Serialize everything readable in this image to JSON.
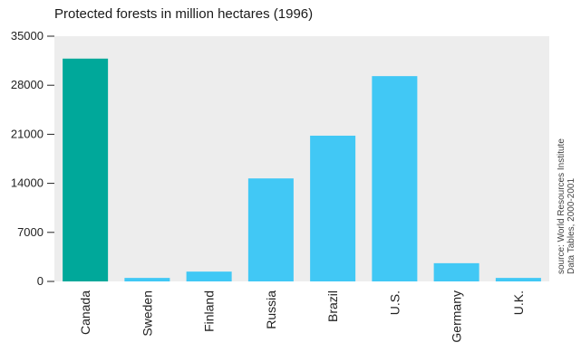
{
  "chart_data": {
    "type": "bar",
    "title": "Protected forests in million hectares (1996)",
    "xlabel": "",
    "ylabel": "",
    "categories": [
      "Canada",
      "Sweden",
      "Finland",
      "Russia",
      "Brazil",
      "U.S.",
      "Germany",
      "U.K."
    ],
    "values": [
      31800,
      500,
      1400,
      14700,
      20800,
      29300,
      2600,
      500
    ],
    "ylim": [
      0,
      35000
    ],
    "yticks": [
      "0",
      "7000",
      "14000",
      "21000",
      "28000",
      "35000"
    ],
    "highlight_category": "Canada",
    "colors": {
      "highlight": "#00a89a",
      "bar": "#41c8f5",
      "plot_bg": "#ededed",
      "tick": "#222222",
      "source_text": "#444444"
    },
    "grid": false,
    "source": [
      "source: World Resources Institute",
      "Data Tables, 2000-2001"
    ]
  }
}
